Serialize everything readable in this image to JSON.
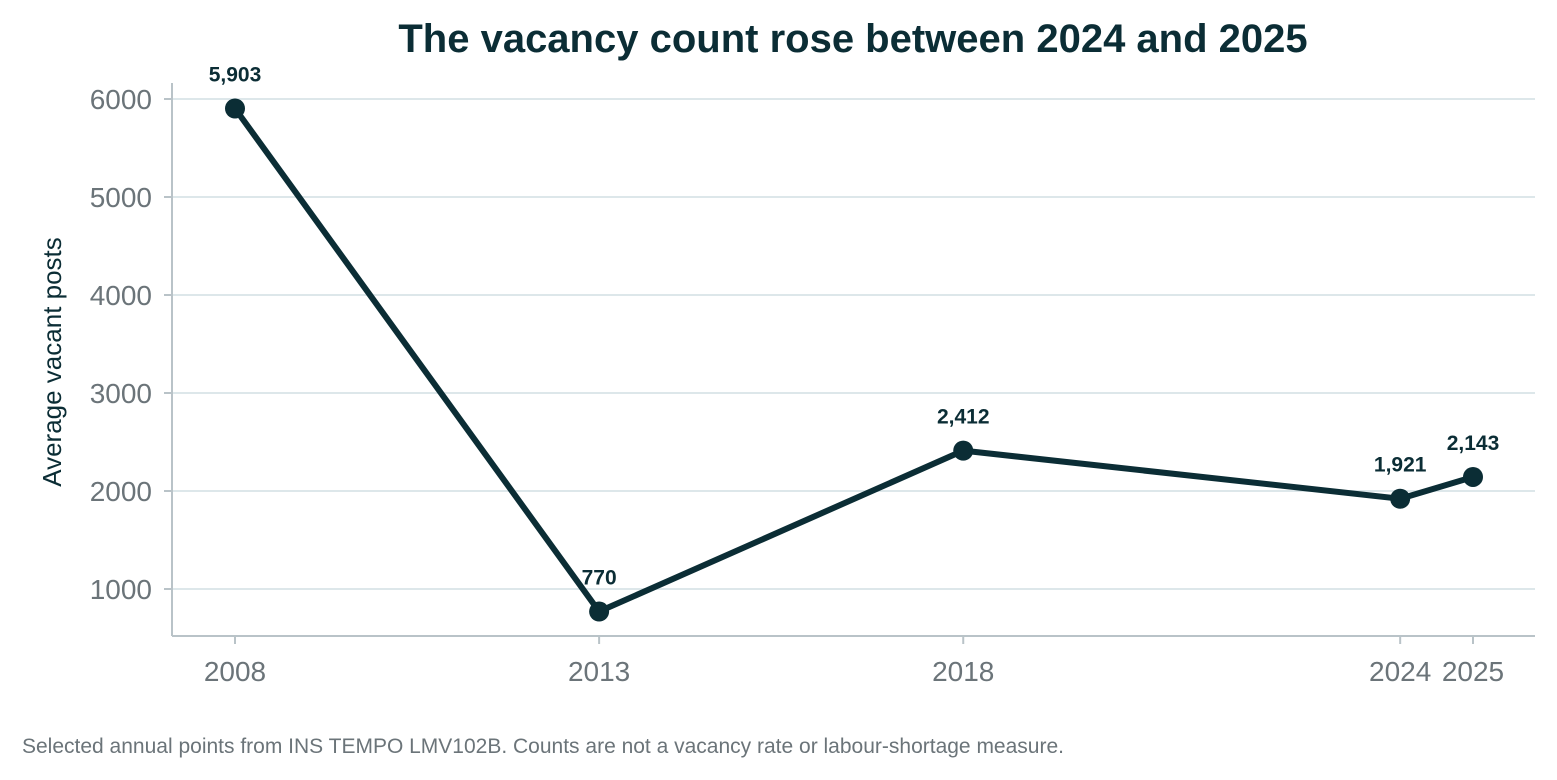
{
  "chart_data": {
    "type": "line",
    "title": "The vacancy count rose between 2024 and 2025",
    "xlabel": "",
    "ylabel": "Average vacant posts",
    "x": [
      2008,
      2013,
      2018,
      2024,
      2025
    ],
    "x_tick_labels": [
      "2008",
      "2013",
      "2018",
      "2024",
      "2025"
    ],
    "series": [
      {
        "values": [
          5903,
          770,
          2412,
          1921,
          2143
        ],
        "data_labels": [
          "5,903",
          "770",
          "2,412",
          "1,921",
          "2,143"
        ]
      }
    ],
    "y_ticks": [
      1000,
      2000,
      3000,
      4000,
      5000,
      6000
    ],
    "y_tick_labels": [
      "1000",
      "2000",
      "3000",
      "4000",
      "5000",
      "6000"
    ],
    "xlim": [
      2008,
      2025
    ],
    "ylim": [
      530,
      6170
    ],
    "grid": "horizontal",
    "legend": "none"
  },
  "footnote": "Selected annual points from INS TEMPO LMV102B. Counts are not a vacancy rate or labour-shortage measure.",
  "colors": {
    "line": "#0b2d35",
    "grid": "#dde7ea",
    "axis": "#b9c3c8",
    "tick_text": "#6b7479",
    "title_text": "#0b2d35"
  }
}
